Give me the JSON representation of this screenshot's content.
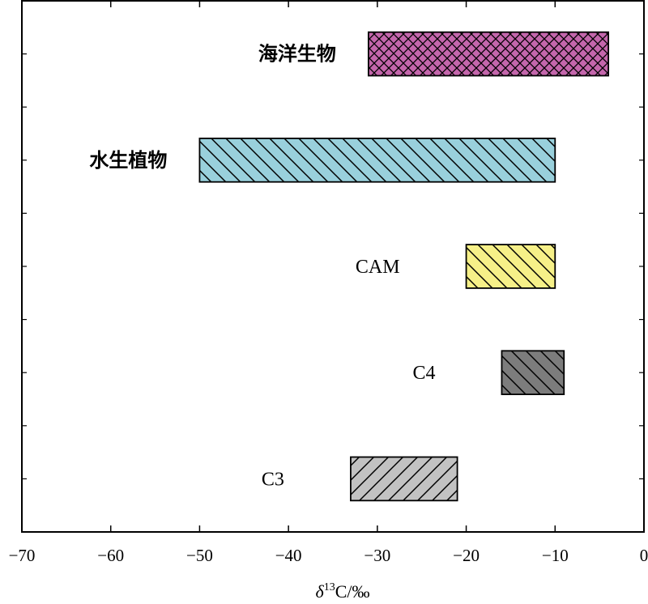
{
  "chart_data": {
    "type": "bar",
    "orientation": "horizontal-range",
    "categories": [
      "海洋生物",
      "水生植物",
      "CAM",
      "C4",
      "C3"
    ],
    "ranges": [
      {
        "label": "海洋生物",
        "min": -31,
        "max": -4,
        "color": "#c466ac",
        "pattern": "crosshatch"
      },
      {
        "label": "水生植物",
        "min": -50,
        "max": -10,
        "color": "#99d0dc",
        "pattern": "backslash"
      },
      {
        "label": "CAM",
        "min": -20,
        "max": -10,
        "color": "#f6f088",
        "pattern": "backslash"
      },
      {
        "label": "C4",
        "min": -16,
        "max": -9,
        "color": "#7c7c7c",
        "pattern": "backslash"
      },
      {
        "label": "C3",
        "min": -33,
        "max": -21,
        "color": "#c2c2c2",
        "pattern": "slash"
      }
    ],
    "xlim": [
      -70,
      0
    ],
    "xticks": [
      "−70",
      "−60",
      "−50",
      "−40",
      "−30",
      "−20",
      "−10",
      "0"
    ],
    "xlabel_parts": {
      "delta": "δ",
      "superscript": "13",
      "rest": "C/‰"
    },
    "grid": false,
    "legend": "none"
  }
}
